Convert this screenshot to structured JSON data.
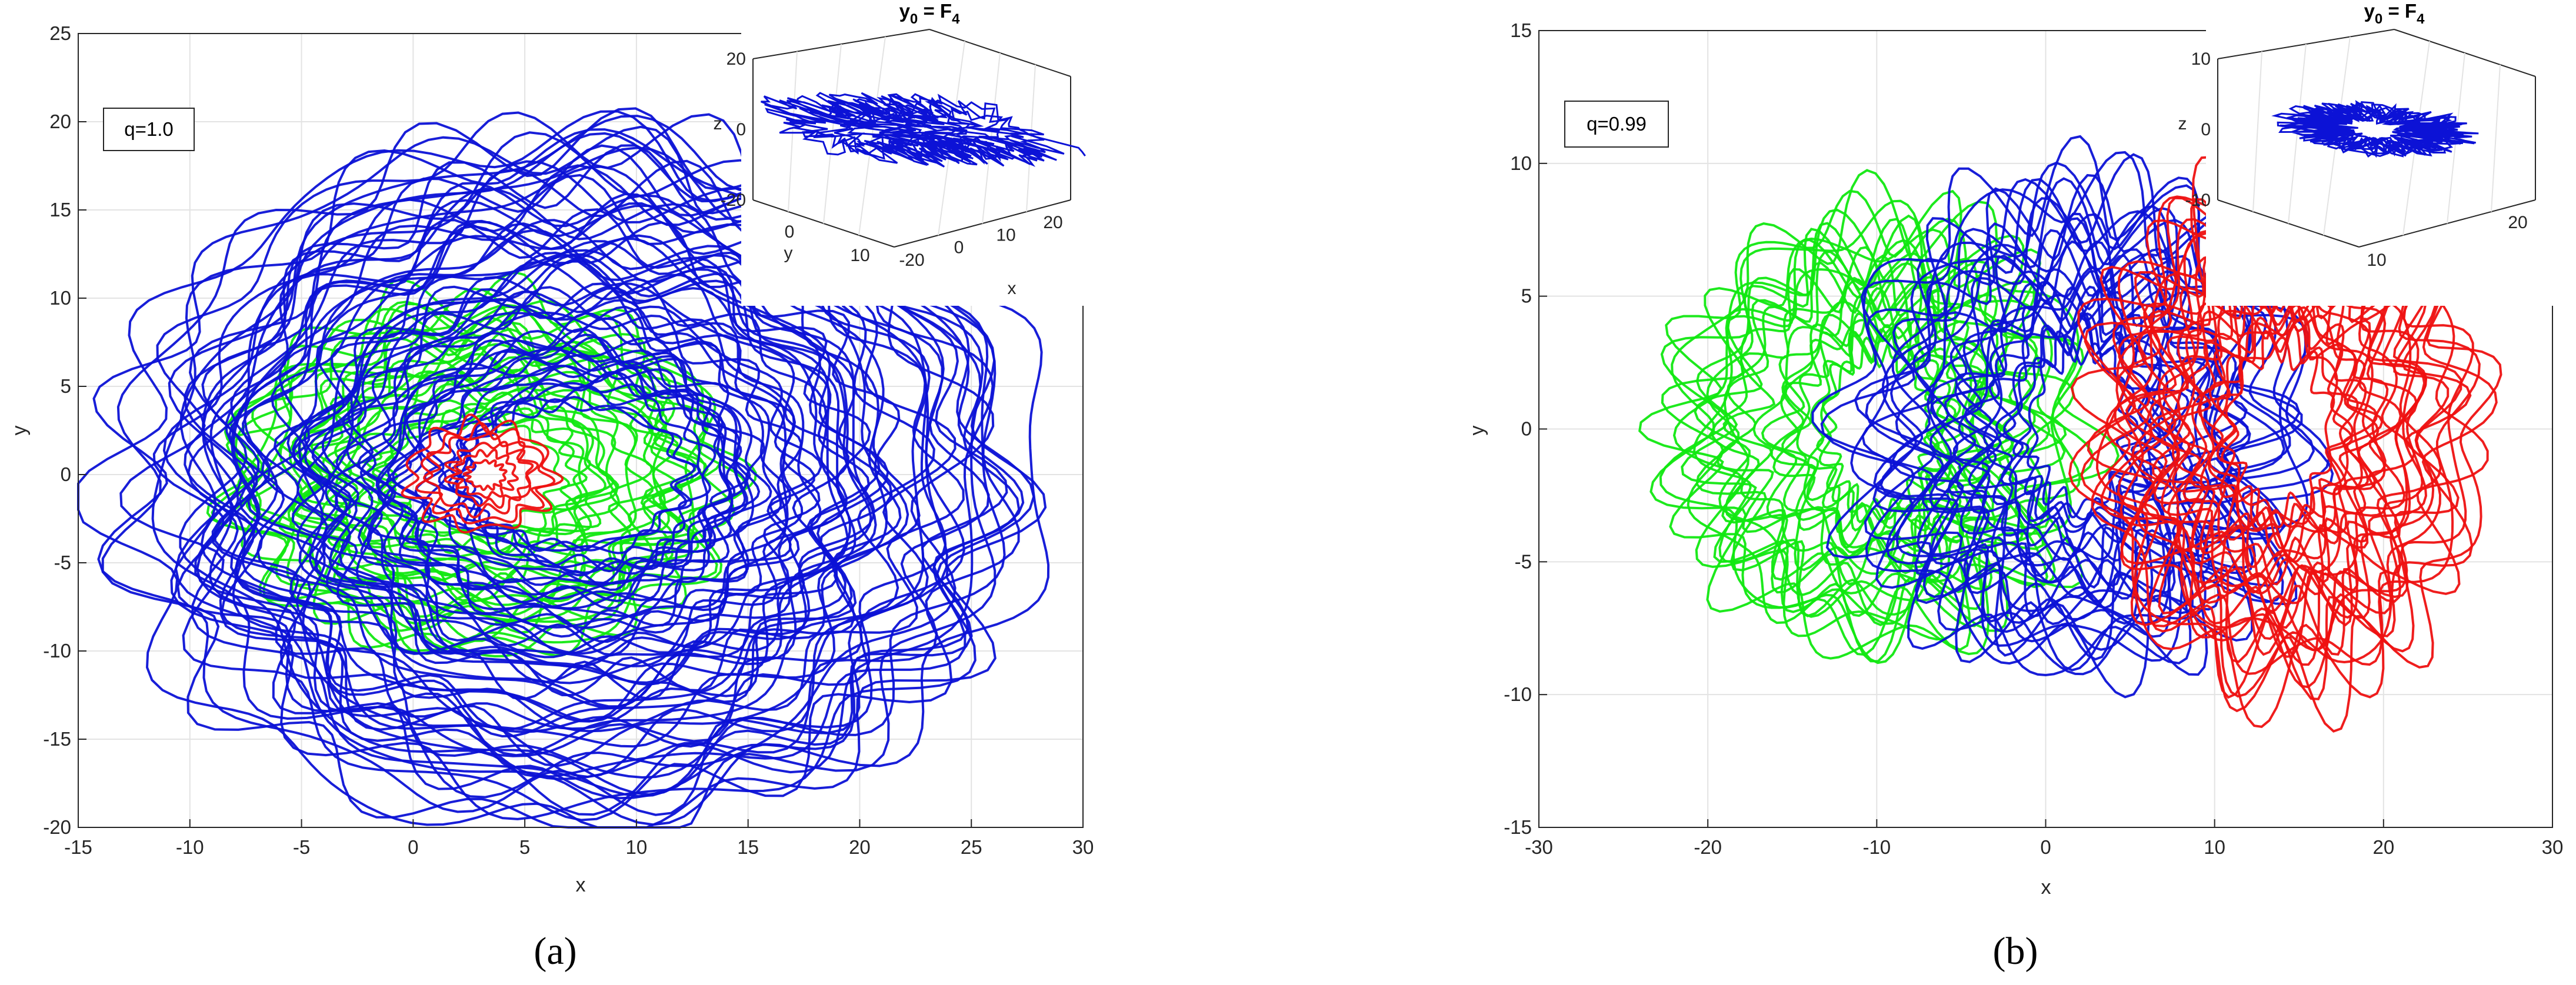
{
  "colors": {
    "green": "#11e811",
    "blue": "#0c12d6",
    "red": "#ee1111",
    "grid": "#e3e3e3",
    "axis": "#262626"
  },
  "chart_data": [
    {
      "type": "line",
      "caption": "(a)",
      "xlabel": "x",
      "ylabel": "y",
      "xlim": [
        -15,
        30
      ],
      "ylim": [
        -20,
        25
      ],
      "xticks": [
        -15,
        -10,
        -5,
        0,
        5,
        10,
        15,
        20,
        25,
        30
      ],
      "yticks": [
        -20,
        -15,
        -10,
        -5,
        0,
        5,
        10,
        15,
        20,
        25
      ],
      "grid": true,
      "legend_box": "q=1.0",
      "series": [
        {
          "color": "green",
          "center": [
            3,
            0
          ],
          "rx_range": [
            4,
            11
          ],
          "ry_range": [
            3,
            10
          ],
          "count": 24,
          "wobble": 0.09
        },
        {
          "color": "blue",
          "center": [
            7.5,
            0
          ],
          "rx_range": [
            5,
            19.5
          ],
          "ry_range": [
            4,
            19.5
          ],
          "count": 60,
          "wobble": 0.07
        },
        {
          "color": "red",
          "center": [
            3.3,
            0
          ],
          "rx_range": [
            0.8,
            3.2
          ],
          "ry_range": [
            0.8,
            3.0
          ],
          "count": 6,
          "wobble": 0.12
        }
      ],
      "inset": {
        "title": "y",
        "title_sub": "0",
        "title_eq": " = F",
        "title_sub2": "4",
        "zlabel": "z",
        "xlabel": "x",
        "ylabel": "y",
        "zticks": [
          "20",
          "0",
          "-20"
        ],
        "xticks": [
          "-20",
          "0",
          "10",
          "20"
        ],
        "yticks": [
          "0",
          "10"
        ],
        "trajectory_color": "blue"
      }
    },
    {
      "type": "line",
      "caption": "(b)",
      "xlabel": "x",
      "ylabel": "y",
      "xlim": [
        -30,
        30
      ],
      "ylim": [
        -15,
        15
      ],
      "xticks": [
        -30,
        -20,
        -10,
        0,
        10,
        20,
        30
      ],
      "yticks": [
        -15,
        -10,
        -5,
        0,
        5,
        10,
        15
      ],
      "grid": true,
      "legend_box": "q=0.99",
      "series": [
        {
          "color": "green",
          "center": [
            -10,
            0
          ],
          "rx_range": [
            3,
            12
          ],
          "ry_range": [
            3,
            8
          ],
          "count": 22,
          "wobble": 0.14
        },
        {
          "color": "blue",
          "center": [
            2,
            0
          ],
          "rx_range": [
            3,
            13
          ],
          "ry_range": [
            3,
            9
          ],
          "count": 26,
          "wobble": 0.14
        },
        {
          "color": "red",
          "center": [
            14,
            0
          ],
          "rx_range": [
            3,
            11
          ],
          "ry_range": [
            3,
            9.5
          ],
          "count": 26,
          "wobble": 0.14
        }
      ],
      "inset": {
        "title": "y",
        "title_sub": "0",
        "title_eq": " = F",
        "title_sub2": "4",
        "zlabel": "z",
        "xlabel": "",
        "ylabel": "",
        "zticks": [
          "10",
          "0",
          "-10"
        ],
        "xticks": [
          "10",
          "20"
        ],
        "yticks": [],
        "trajectory_color": "blue"
      }
    }
  ]
}
